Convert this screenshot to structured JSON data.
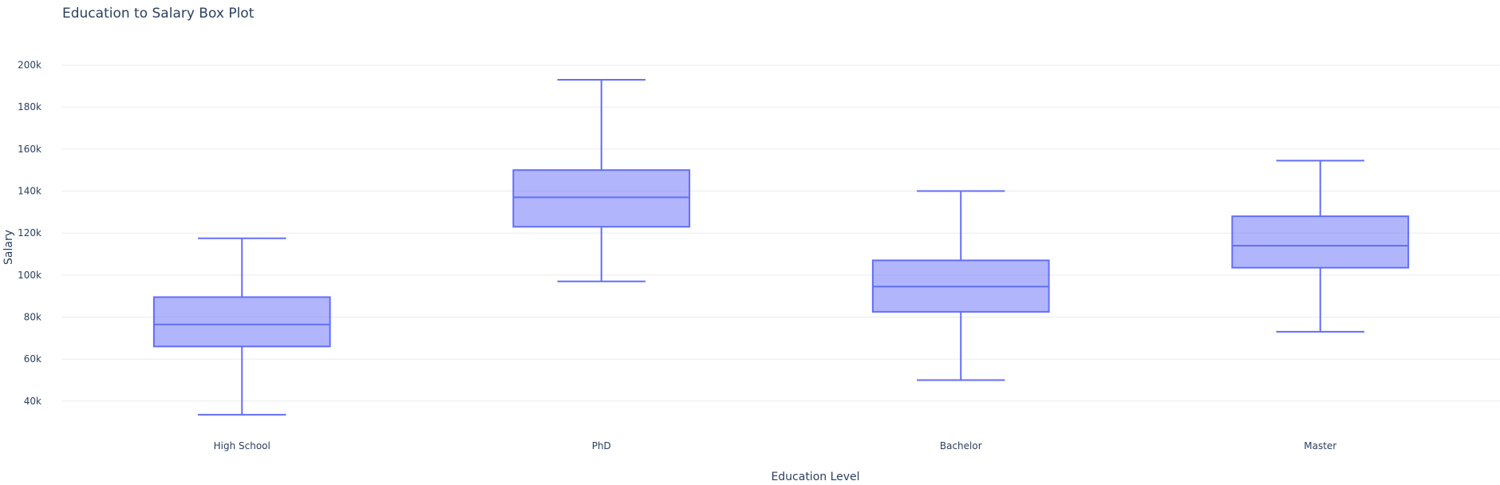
{
  "chart_data": {
    "type": "box",
    "title": "Education to Salary Box Plot",
    "xlabel": "Education Level",
    "ylabel": "Salary",
    "ylim": [
      27000,
      212000
    ],
    "yticks": [
      40000,
      60000,
      80000,
      100000,
      120000,
      140000,
      160000,
      180000,
      200000
    ],
    "ytick_labels": [
      "40k",
      "60k",
      "80k",
      "100k",
      "120k",
      "140k",
      "160k",
      "180k",
      "200k"
    ],
    "categories": [
      "High School",
      "PhD",
      "Bachelor",
      "Master"
    ],
    "series": [
      {
        "boxes": [
          {
            "category": "High School",
            "min": 33500,
            "q1": 66000,
            "median": 76500,
            "q3": 89500,
            "max": 117500
          },
          {
            "category": "PhD",
            "min": 97000,
            "q1": 123000,
            "median": 137000,
            "q3": 150000,
            "max": 193000
          },
          {
            "category": "Bachelor",
            "min": 50000,
            "q1": 82500,
            "median": 94500,
            "q3": 107000,
            "max": 140000
          },
          {
            "category": "Master",
            "min": 73000,
            "q1": 103500,
            "median": 114000,
            "q3": 128000,
            "max": 154500
          }
        ]
      }
    ],
    "grid": true,
    "legend": false,
    "colors": {
      "box_line": "#636efa",
      "box_fill": "rgba(99,110,250,0.5)",
      "grid": "#ebebeb",
      "text": "#2a3f5f"
    }
  }
}
